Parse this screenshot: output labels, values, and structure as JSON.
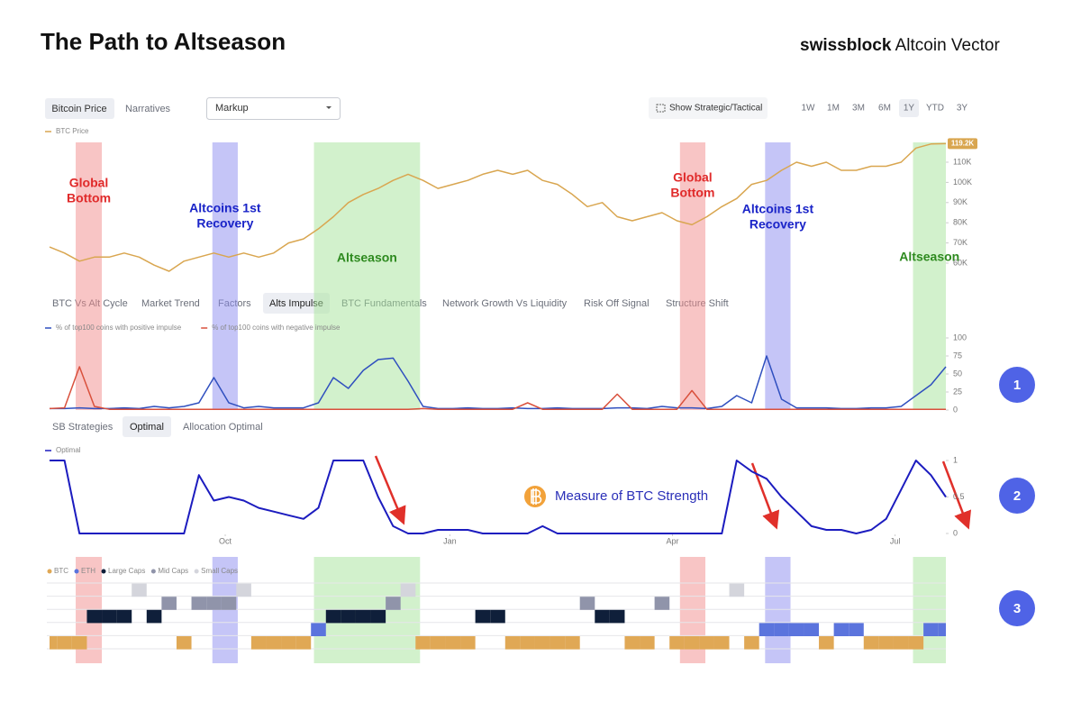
{
  "header": {
    "title": "The Path to Altseason",
    "brand_bold": "swissblock",
    "brand": "Altcoin Vector"
  },
  "toolbar": {
    "tabs": [
      "Bitcoin Price",
      "Narratives"
    ],
    "select": "Markup",
    "toggle": "Show Strategic/Tactical",
    "ranges": [
      "1W",
      "1M",
      "3M",
      "6M",
      "1Y",
      "YTD",
      "3Y"
    ]
  },
  "indicator_tabs": [
    "BTC Vs Alt Cycle",
    "Market Trend",
    "Factors",
    "Alts Impulse",
    "BTC Fundamentals",
    "Network Growth Vs Liquidity",
    "Risk Off Signal",
    "Structure Shift"
  ],
  "strategy_tabs": [
    "SB Strategies",
    "Optimal",
    "Allocation Optimal"
  ],
  "callout": "Measure of BTC Strength",
  "steps": [
    "1",
    "2",
    "3"
  ],
  "highlights": [
    {
      "start": 1.75,
      "end": 3.5,
      "color": "#f28b8b",
      "label_color": "#e02a2a",
      "label": [
        "Global",
        "Bottom"
      ]
    },
    {
      "start": 10.9,
      "end": 12.6,
      "color": "#8c8cf0",
      "label_color": "#1a24c8",
      "label": [
        "Altcoins 1st",
        "Recovery"
      ]
    },
    {
      "start": 17.7,
      "end": 24.8,
      "color": "#a6e39a",
      "label_color": "#2e8a1f",
      "label": [
        "Altseason"
      ]
    },
    {
      "start": 42.2,
      "end": 43.9,
      "color": "#f28b8b",
      "label_color": "#e02a2a",
      "label": [
        "Global",
        "Bottom"
      ]
    },
    {
      "start": 47.9,
      "end": 49.6,
      "color": "#8c8cf0",
      "label_color": "#1a24c8",
      "label": [
        "Altcoins 1st",
        "Recovery"
      ]
    },
    {
      "start": 57.8,
      "end": 60,
      "color": "#a6e39a",
      "label_color": "#2e8a1f",
      "label": [
        "Altseason"
      ]
    }
  ],
  "chart_data": [
    {
      "type": "line",
      "xlim": [
        0,
        60
      ],
      "ylim": [
        50,
        120
      ],
      "yticks": [
        {
          "value": 60,
          "label": "60K"
        },
        {
          "value": 70,
          "label": "70K"
        },
        {
          "value": 80,
          "label": "80K"
        },
        {
          "value": 90,
          "label": "90K"
        },
        {
          "value": 100,
          "label": "100K"
        },
        {
          "value": 110,
          "label": "110K"
        }
      ],
      "series": [
        {
          "name": "BTC Price",
          "color": "#d9a650",
          "values": [
            68,
            65,
            61,
            63,
            63,
            65,
            63,
            59,
            56,
            61,
            63,
            65,
            63,
            65,
            63,
            65,
            70,
            72,
            77,
            83,
            90,
            94,
            97,
            101,
            104,
            101,
            97,
            99,
            101,
            104,
            106,
            104,
            106,
            101,
            99,
            94,
            88,
            90,
            83,
            81,
            83,
            85,
            81,
            79,
            83,
            88,
            92,
            99,
            101,
            106,
            110,
            108,
            110,
            106,
            106,
            108,
            108,
            110,
            117,
            119,
            119.2
          ],
          "value_labels": [
            null,
            null,
            null,
            null,
            null,
            null,
            null,
            null,
            null,
            null,
            null,
            null,
            null,
            null,
            null,
            null,
            null,
            null,
            null,
            null,
            null,
            null,
            null,
            null,
            null,
            null,
            null,
            null,
            null,
            null,
            null,
            null,
            null,
            null,
            null,
            null,
            null,
            null,
            null,
            null,
            null,
            null,
            null,
            null,
            null,
            null,
            null,
            null,
            null,
            null,
            null,
            null,
            null,
            null,
            null,
            null,
            null,
            null,
            null,
            null,
            "119.2K"
          ]
        }
      ]
    },
    {
      "type": "line",
      "xlim": [
        0,
        60
      ],
      "ylim": [
        0,
        100
      ],
      "yticks": [
        0,
        25,
        50,
        75,
        100
      ],
      "series": [
        {
          "name": "% of top100 coins with positive impulse",
          "color": "#2f4fbf",
          "values": [
            2,
            2,
            3,
            2,
            2,
            3,
            2,
            5,
            3,
            5,
            10,
            45,
            10,
            3,
            5,
            3,
            3,
            3,
            10,
            45,
            30,
            55,
            70,
            72,
            40,
            5,
            2,
            2,
            3,
            2,
            2,
            3,
            2,
            2,
            3,
            2,
            2,
            2,
            3,
            3,
            2,
            5,
            3,
            3,
            2,
            5,
            20,
            10,
            75,
            15,
            3,
            3,
            3,
            2,
            2,
            3,
            3,
            5,
            20,
            35,
            60
          ]
        },
        {
          "name": "% of top100 coins with negative impulse",
          "color": "#d9503c",
          "values": [
            2,
            3,
            60,
            5,
            1,
            1,
            1,
            1,
            1,
            1,
            1,
            1,
            1,
            1,
            1,
            1,
            1,
            1,
            1,
            1,
            1,
            1,
            1,
            1,
            1,
            2,
            1,
            1,
            1,
            1,
            1,
            1,
            10,
            1,
            1,
            1,
            1,
            1,
            22,
            1,
            1,
            1,
            1,
            27,
            1,
            1,
            1,
            1,
            1,
            1,
            1,
            1,
            1,
            1,
            1,
            1,
            1,
            1,
            1,
            1,
            1
          ]
        }
      ]
    },
    {
      "type": "line",
      "xlim": [
        0,
        60
      ],
      "ylim": [
        0,
        1
      ],
      "yticks": [
        0,
        0.5,
        1
      ],
      "xticks": [
        {
          "value": 11.76,
          "label": "Oct"
        },
        {
          "value": 26.8,
          "label": "Jan"
        },
        {
          "value": 41.7,
          "label": "Apr"
        },
        {
          "value": 56.6,
          "label": "Jul"
        }
      ],
      "series": [
        {
          "name": "Optimal",
          "color": "#1c1cbf",
          "values": [
            1,
            1,
            0,
            0,
            0,
            0,
            0,
            0,
            0,
            0,
            0.8,
            0.45,
            0.5,
            0.45,
            0.35,
            0.3,
            0.25,
            0.2,
            0.35,
            1,
            1,
            1,
            0.5,
            0.1,
            0,
            0,
            0.05,
            0.05,
            0.05,
            0,
            0,
            0,
            0,
            0.1,
            0,
            0,
            0,
            0,
            0,
            0,
            0,
            0,
            0,
            0,
            0,
            0,
            1,
            0.85,
            0.75,
            0.5,
            0.3,
            0.1,
            0.05,
            0.05,
            0,
            0.05,
            0.2,
            0.6,
            1,
            0.8,
            0.5
          ]
        }
      ]
    },
    {
      "type": "state",
      "xlim": [
        0,
        60
      ],
      "series": [
        {
          "name": "BTC",
          "color": "#e0a855"
        },
        {
          "name": "ETH",
          "color": "#5b74dd"
        },
        {
          "name": "Large Caps",
          "color": "#0f1f3a"
        },
        {
          "name": "Mid Caps",
          "color": "#9094aa"
        },
        {
          "name": "Small Caps",
          "color": "#d4d5dc"
        }
      ],
      "values": [
        0,
        0,
        0,
        2,
        2,
        2,
        4,
        2,
        3,
        0,
        3,
        3,
        3,
        4,
        0,
        0,
        0,
        0,
        1,
        2,
        2,
        2,
        2,
        3,
        4,
        0,
        0,
        0,
        0,
        2,
        2,
        0,
        0,
        0,
        0,
        0,
        3,
        2,
        2,
        0,
        0,
        3,
        0,
        0,
        0,
        0,
        4,
        0,
        1,
        1,
        1,
        1,
        0,
        1,
        1,
        0,
        0,
        0,
        0,
        1,
        1
      ]
    }
  ]
}
